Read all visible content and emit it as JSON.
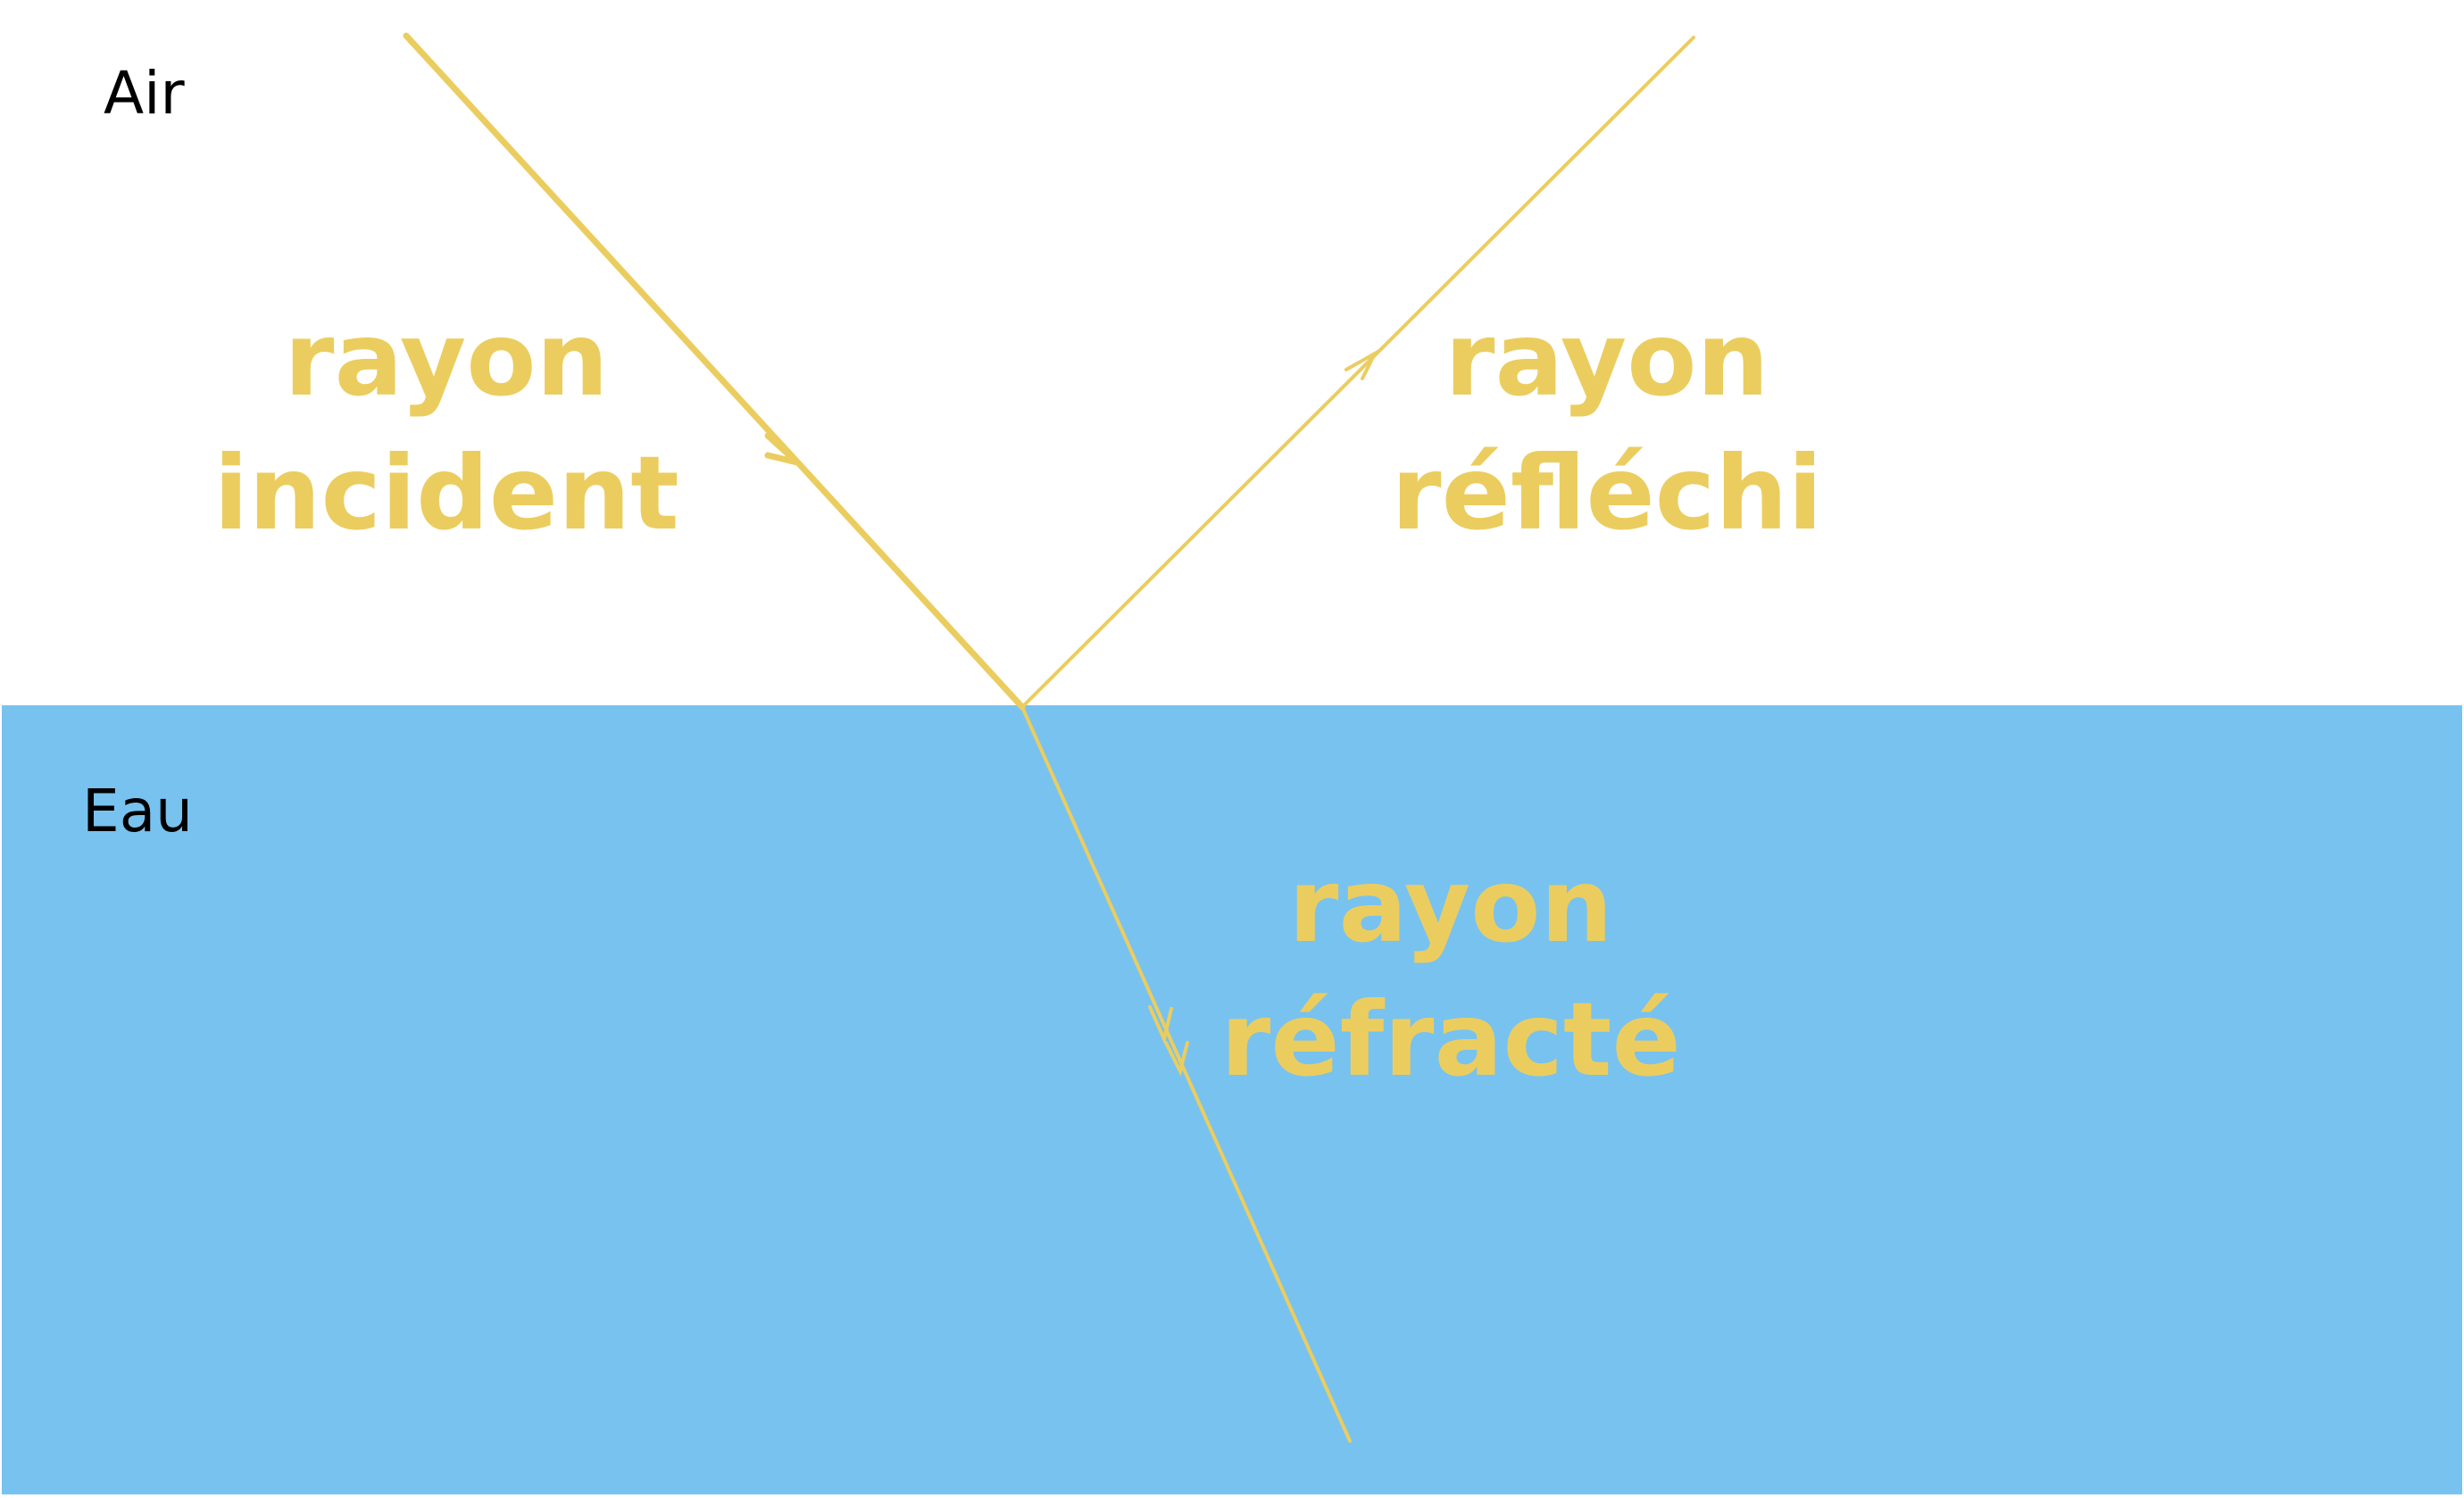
{
  "colors": {
    "air": "#ffffff",
    "water": "#78c2ef",
    "ray": "#ebcd5f",
    "text": "#000000"
  },
  "media": {
    "top": "Air",
    "bottom": "Eau"
  },
  "rays": {
    "incident": {
      "line1": "rayon",
      "line2": "incident"
    },
    "reflechi": {
      "line1": "rayon",
      "line2": "réfléchi"
    },
    "refracte": {
      "line1": "rayon",
      "line2": "réfracté"
    }
  }
}
